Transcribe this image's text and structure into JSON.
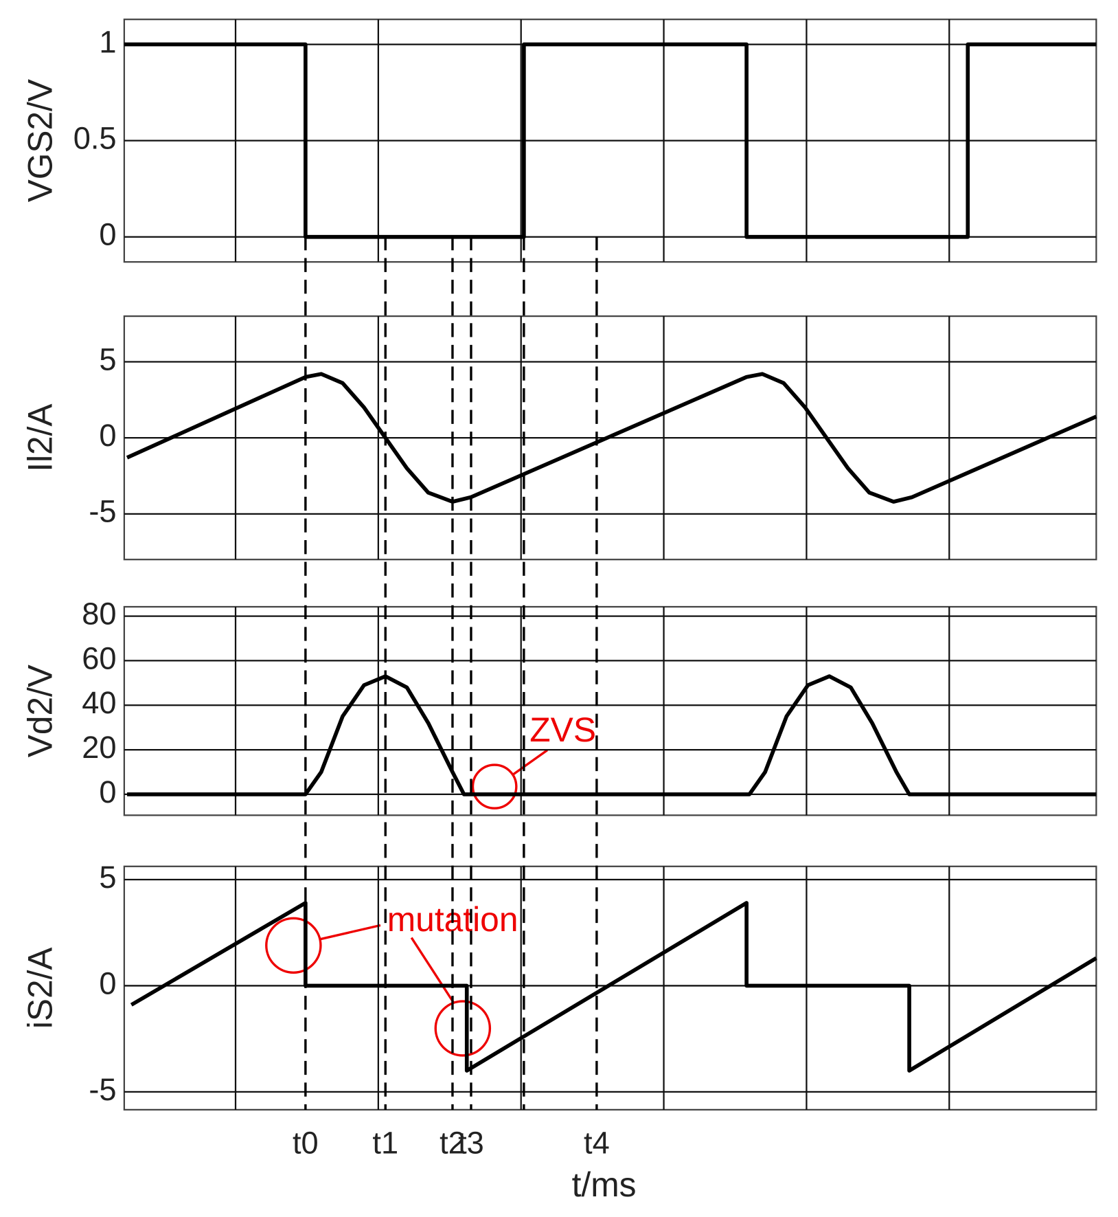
{
  "chart_data": [
    {
      "type": "line",
      "ylabel": "VGS2/V",
      "xlim": [
        -0.78,
        6.03
      ],
      "ylim": [
        -0.13,
        1.13
      ],
      "yticks": [
        0,
        0.5,
        1
      ],
      "xgrid": [
        0,
        1,
        2,
        3,
        4,
        5
      ],
      "grid": true,
      "series": [
        {
          "color": "#000000",
          "x": [
            -0.78,
            0.49,
            0.49,
            2.02,
            2.02,
            3.58,
            3.58,
            5.13,
            5.13,
            6.03
          ],
          "values": [
            1,
            1,
            0,
            0,
            1,
            1,
            0,
            0,
            1,
            1
          ]
        }
      ]
    },
    {
      "type": "line",
      "ylabel": "Il2/A",
      "xlim": [
        -0.78,
        6.03
      ],
      "ylim": [
        -8,
        8
      ],
      "yticks": [
        -5,
        0,
        5
      ],
      "xgrid": [
        0,
        1,
        2,
        3,
        4,
        5
      ],
      "grid": true,
      "series": [
        {
          "color": "#000000",
          "x": [
            -0.76,
            0.49,
            0.6,
            0.75,
            0.9,
            1.05,
            1.2,
            1.35,
            1.52,
            1.65,
            3.58,
            3.69,
            3.84,
            3.99,
            4.14,
            4.29,
            4.44,
            4.61,
            4.74,
            6.03
          ],
          "values": [
            -1.3,
            4.0,
            4.2,
            3.6,
            2.0,
            0,
            -2.0,
            -3.6,
            -4.2,
            -3.9,
            4.0,
            4.2,
            3.6,
            2.0,
            0,
            -2.0,
            -3.6,
            -4.2,
            -3.9,
            1.4
          ]
        }
      ]
    },
    {
      "type": "line",
      "ylabel": "Vd2/V",
      "xlim": [
        -0.78,
        6.03
      ],
      "ylim": [
        -9.4,
        84.2
      ],
      "yticks": [
        0,
        20,
        40,
        60,
        80
      ],
      "xgrid": [
        0,
        1,
        2,
        3,
        4,
        5
      ],
      "grid": true,
      "annotations": [
        "ZVS"
      ],
      "series": [
        {
          "color": "#000000",
          "x": [
            -0.76,
            0.49,
            0.6,
            0.75,
            0.9,
            1.05,
            1.2,
            1.35,
            1.52,
            1.6,
            3.6,
            3.71,
            3.86,
            4.01,
            4.16,
            4.31,
            4.46,
            4.63,
            4.72,
            6.03
          ],
          "values": [
            0,
            0,
            10,
            35,
            49,
            53,
            48,
            32,
            10,
            0,
            0,
            10,
            35,
            49,
            53,
            48,
            32,
            10,
            0,
            0
          ]
        }
      ]
    },
    {
      "type": "line",
      "ylabel": "iS2/A",
      "xlabel": "t/ms",
      "xlim": [
        -0.78,
        6.03
      ],
      "ylim": [
        -5.84,
        5.62
      ],
      "yticks": [
        -5,
        0,
        5
      ],
      "xgrid": [
        0,
        1,
        2,
        3,
        4,
        5
      ],
      "grid": true,
      "annotations": [
        "mutation"
      ],
      "xticks": [
        {
          "value": 0.49,
          "label": "t0"
        },
        {
          "value": 1.05,
          "label": "t1"
        },
        {
          "value": 1.52,
          "label": "t2"
        },
        {
          "value": 1.65,
          "label": "t3"
        },
        {
          "value": 2.53,
          "label": "t4"
        }
      ],
      "guide_lines": [
        0.49,
        1.05,
        1.52,
        1.65,
        2.02,
        2.53
      ],
      "series": [
        {
          "color": "#000000",
          "x": [
            -0.73,
            0.49,
            0.49,
            1.62,
            1.62,
            3.58,
            3.58,
            4.72,
            4.72,
            6.03
          ],
          "values": [
            -0.9,
            3.9,
            0,
            0,
            -4.0,
            3.9,
            0,
            0,
            -4.0,
            1.3
          ]
        }
      ]
    }
  ]
}
